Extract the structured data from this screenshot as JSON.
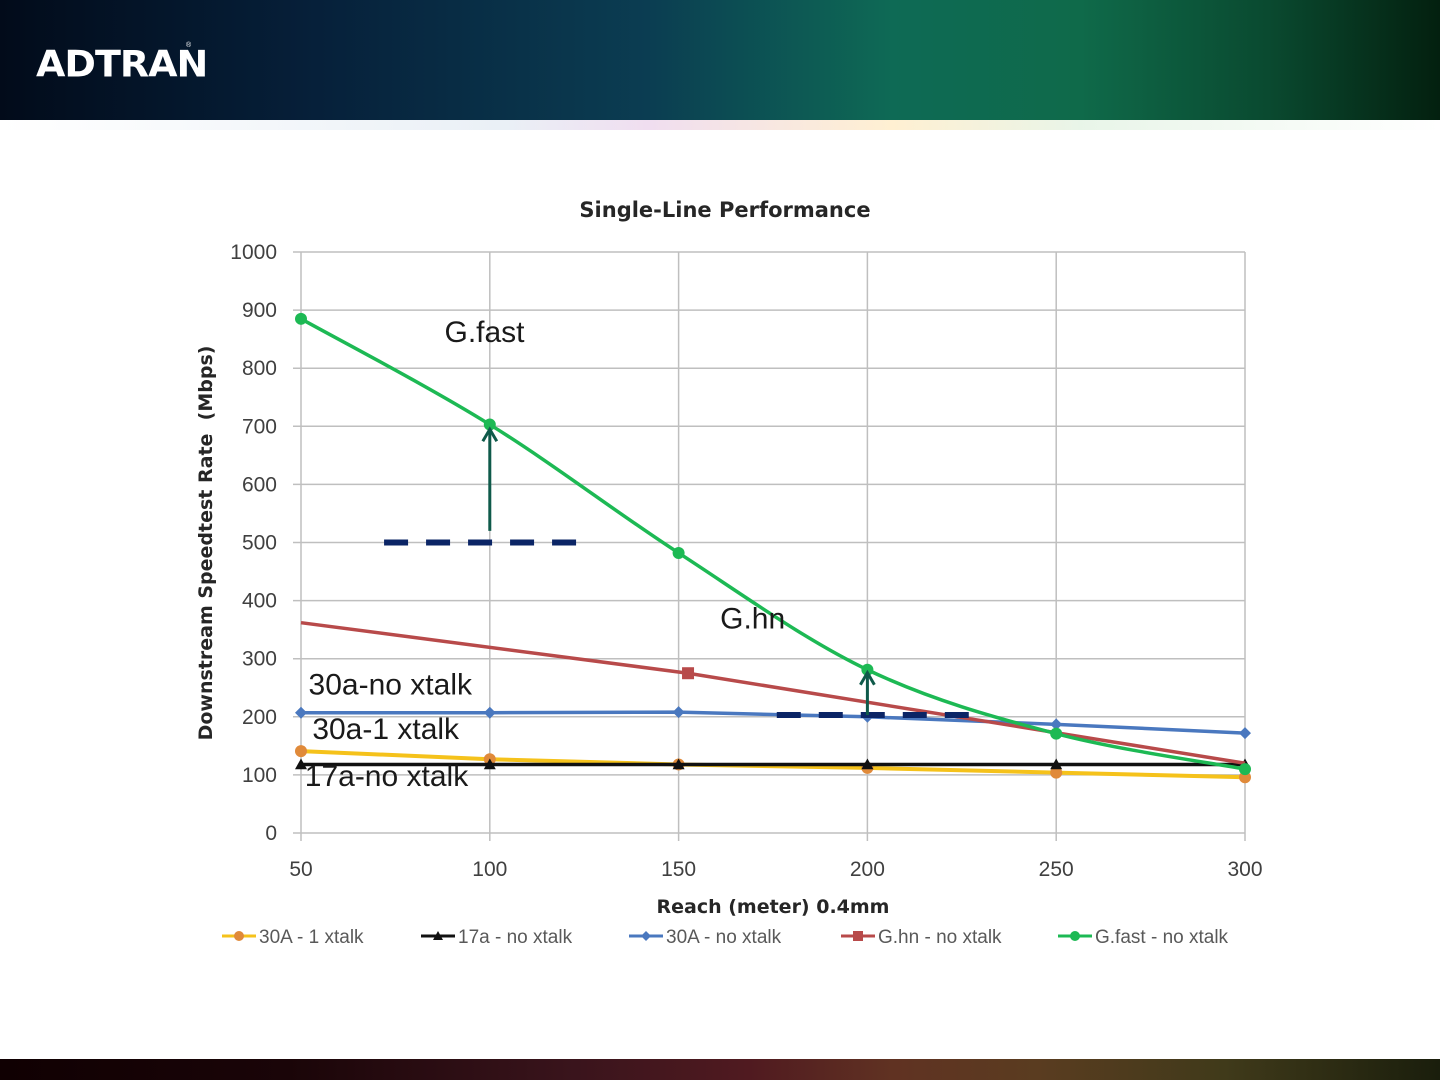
{
  "header": {
    "logo_text": "ADTRAN",
    "logo_reg": "®"
  },
  "colors": {
    "g_fast": "#1db954",
    "g_hn": "#b84a4a",
    "a30_no_xtalk": "#4a78bf",
    "a30_1_xtalk_line": "#f5c21b",
    "a30_1_xtalk_marker": "#e08a3a",
    "a17_no_xtalk": "#111111",
    "annotation_dash": "#0b2566",
    "annotation_arrow": "#0f5a4a",
    "grid": "#bfbfbf"
  },
  "chart_data": {
    "type": "line",
    "title": "Single-Line Performance",
    "xlabel": "Reach (meter) 0.4mm",
    "ylabel": "Downstream Speedtest Rate  (Mbps)",
    "xlim": [
      50,
      300
    ],
    "ylim": [
      0,
      1000
    ],
    "x_ticks": [
      50,
      100,
      150,
      200,
      250,
      300
    ],
    "y_ticks": [
      0,
      100,
      200,
      300,
      400,
      500,
      600,
      700,
      800,
      900,
      1000
    ],
    "grid": true,
    "legend_position": "bottom",
    "series": [
      {
        "key": "a30_1_xtalk",
        "name": "30A - 1 xtalk",
        "marker": "circle",
        "color_key": "a30_1_xtalk_line",
        "marker_color_key": "a30_1_xtalk_marker",
        "x": [
          50,
          100,
          150,
          200,
          250,
          300
        ],
        "values": [
          141,
          127,
          118,
          112,
          104,
          96
        ]
      },
      {
        "key": "a17_no_xtalk",
        "name": "17a - no xtalk",
        "marker": "triangle",
        "color_key": "a17_no_xtalk",
        "marker_color_key": "a17_no_xtalk",
        "x": [
          50,
          100,
          150,
          200,
          250,
          300
        ],
        "values": [
          118,
          118,
          118,
          118,
          118,
          118
        ]
      },
      {
        "key": "a30_no_xtalk",
        "name": "30A - no xtalk",
        "marker": "diamond",
        "color_key": "a30_no_xtalk",
        "marker_color_key": "a30_no_xtalk",
        "x": [
          50,
          100,
          150,
          200,
          250,
          300
        ],
        "values": [
          207,
          207,
          208,
          200,
          187,
          172
        ]
      },
      {
        "key": "g_hn",
        "name": "G.hn - no xtalk",
        "marker": "square",
        "color_key": "g_hn",
        "marker_color_key": "g_hn",
        "x": [
          50,
          152.5,
          300
        ],
        "values": [
          362,
          275,
          120
        ],
        "marker_points": [
          152.5
        ]
      },
      {
        "key": "g_fast",
        "name": "G.fast - no xtalk",
        "marker": "circle",
        "color_key": "g_fast",
        "marker_color_key": "g_fast",
        "smooth": true,
        "x": [
          50,
          100,
          150,
          200,
          250,
          300
        ],
        "values": [
          885,
          703,
          482,
          281,
          171,
          110
        ]
      }
    ],
    "annotations": {
      "labels": [
        {
          "text": "G.fast",
          "x": 88,
          "y": 845
        },
        {
          "text": "G.hn",
          "x": 161,
          "y": 352
        },
        {
          "text": "30a-no xtalk",
          "x": 52,
          "y": 238
        },
        {
          "text": "30a-1 xtalk",
          "x": 53,
          "y": 162
        },
        {
          "text": "17a-no xtalk",
          "x": 51,
          "y": 81
        }
      ],
      "dashed_lines": [
        {
          "x1": 72,
          "x2": 125,
          "y": 500
        },
        {
          "x1": 176,
          "x2": 230,
          "y": 203
        }
      ],
      "arrows": [
        {
          "x": 100,
          "y_from": 520,
          "y_to": 700
        },
        {
          "x": 200,
          "y_from": 203,
          "y_to": 281
        }
      ]
    }
  }
}
